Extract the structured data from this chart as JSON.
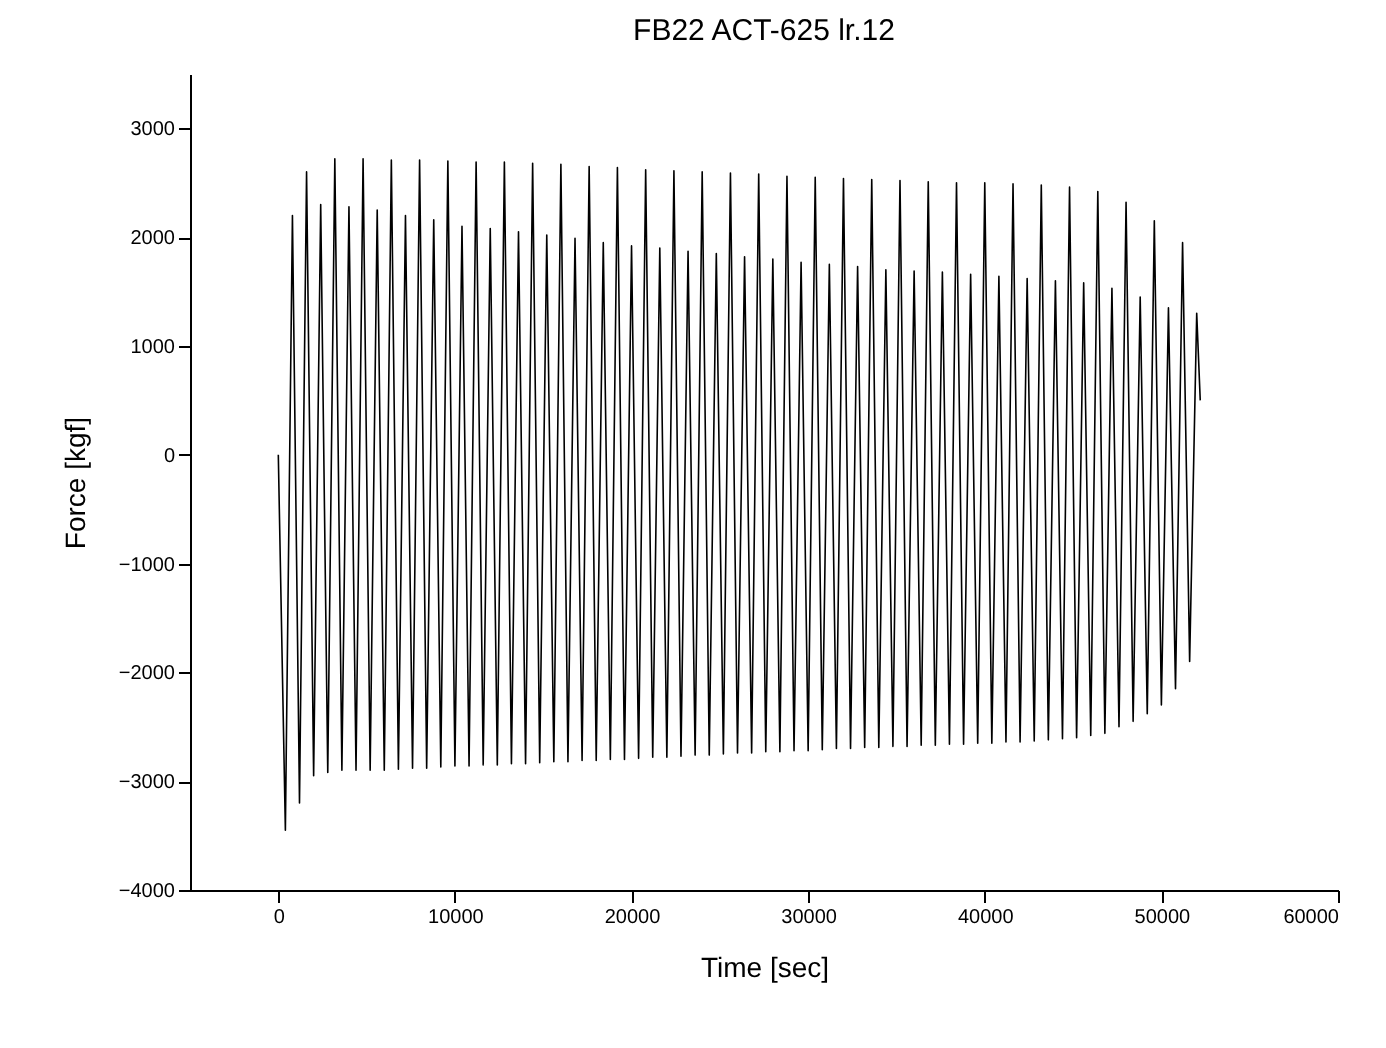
{
  "chart_data": {
    "type": "line",
    "title": "FB22 ACT-625 lr.12",
    "xlabel": "Time  [sec]",
    "ylabel": "Force  [kgf]",
    "x": [
      0,
      400,
      800,
      1200,
      1600,
      2000,
      2400,
      2800,
      3200,
      3600,
      4000,
      4400,
      4800,
      5200,
      5600,
      6000,
      6400,
      6800,
      7200,
      7600,
      8000,
      8400,
      8800,
      9200,
      9600,
      10000,
      10400,
      10800,
      11200,
      11600,
      12000,
      12400,
      12800,
      13200,
      13600,
      14000,
      14400,
      14800,
      15200,
      15600,
      16000,
      16400,
      16800,
      17200,
      17600,
      18000,
      18400,
      18800,
      19200,
      19600,
      20000,
      20400,
      20800,
      21200,
      21600,
      22000,
      22400,
      22800,
      23200,
      23600,
      24000,
      24400,
      24800,
      25200,
      25600,
      26000,
      26400,
      26800,
      27200,
      27600,
      28000,
      28400,
      28800,
      29200,
      29600,
      30000,
      30400,
      30800,
      31200,
      31600,
      32000,
      32400,
      32800,
      33200,
      33600,
      34000,
      34400,
      34800,
      35200,
      35600,
      36000,
      36400,
      36800,
      37200,
      37600,
      38000,
      38400,
      38800,
      39200,
      39600,
      40000,
      40400,
      40800,
      41200,
      41600,
      42000,
      42400,
      42800,
      43200,
      43600,
      44000,
      44400,
      44800,
      45200,
      45600,
      46000,
      46400,
      46800,
      47200,
      47600,
      48000,
      48400,
      48800,
      49200,
      49600,
      50000,
      50400,
      50800,
      51200,
      51600,
      52000,
      52200
    ],
    "series": [
      {
        "color": "#000000",
        "values": [
          0,
          -3450,
          2200,
          -3200,
          2600,
          -2950,
          2300,
          -2920,
          2720,
          -2900,
          2280,
          -2900,
          2720,
          -2900,
          2250,
          -2900,
          2710,
          -2890,
          2200,
          -2880,
          2710,
          -2880,
          2160,
          -2870,
          2700,
          -2860,
          2100,
          -2860,
          2690,
          -2850,
          2080,
          -2850,
          2690,
          -2840,
          2050,
          -2840,
          2680,
          -2830,
          2020,
          -2820,
          2670,
          -2820,
          1990,
          -2810,
          2650,
          -2810,
          1950,
          -2800,
          2640,
          -2800,
          1920,
          -2790,
          2620,
          -2780,
          1900,
          -2780,
          2610,
          -2770,
          1870,
          -2760,
          2600,
          -2760,
          1850,
          -2750,
          2590,
          -2740,
          1820,
          -2740,
          2580,
          -2730,
          1800,
          -2730,
          2560,
          -2720,
          1770,
          -2720,
          2550,
          -2710,
          1750,
          -2700,
          2540,
          -2700,
          1730,
          -2690,
          2530,
          -2690,
          1700,
          -2680,
          2520,
          -2680,
          1690,
          -2670,
          2510,
          -2670,
          1680,
          -2660,
          2500,
          -2660,
          1660,
          -2650,
          2500,
          -2650,
          1640,
          -2640,
          2490,
          -2640,
          1620,
          -2630,
          2480,
          -2620,
          1600,
          -2610,
          2460,
          -2600,
          1580,
          -2580,
          2420,
          -2560,
          1530,
          -2500,
          2320,
          -2450,
          1450,
          -2380,
          2150,
          -2300,
          1350,
          -2150,
          1950,
          -1900,
          1300,
          500
        ]
      }
    ],
    "xlim": [
      -5000,
      60000
    ],
    "xticks": [
      0,
      10000,
      20000,
      30000,
      40000,
      50000,
      60000
    ],
    "ylim": [
      -4000,
      3500
    ],
    "yticks": [
      -4000,
      -3000,
      -2000,
      -1000,
      0,
      1000,
      2000,
      3000
    ],
    "grid": false,
    "legend": false,
    "marker": "none",
    "line_style": "solid"
  }
}
